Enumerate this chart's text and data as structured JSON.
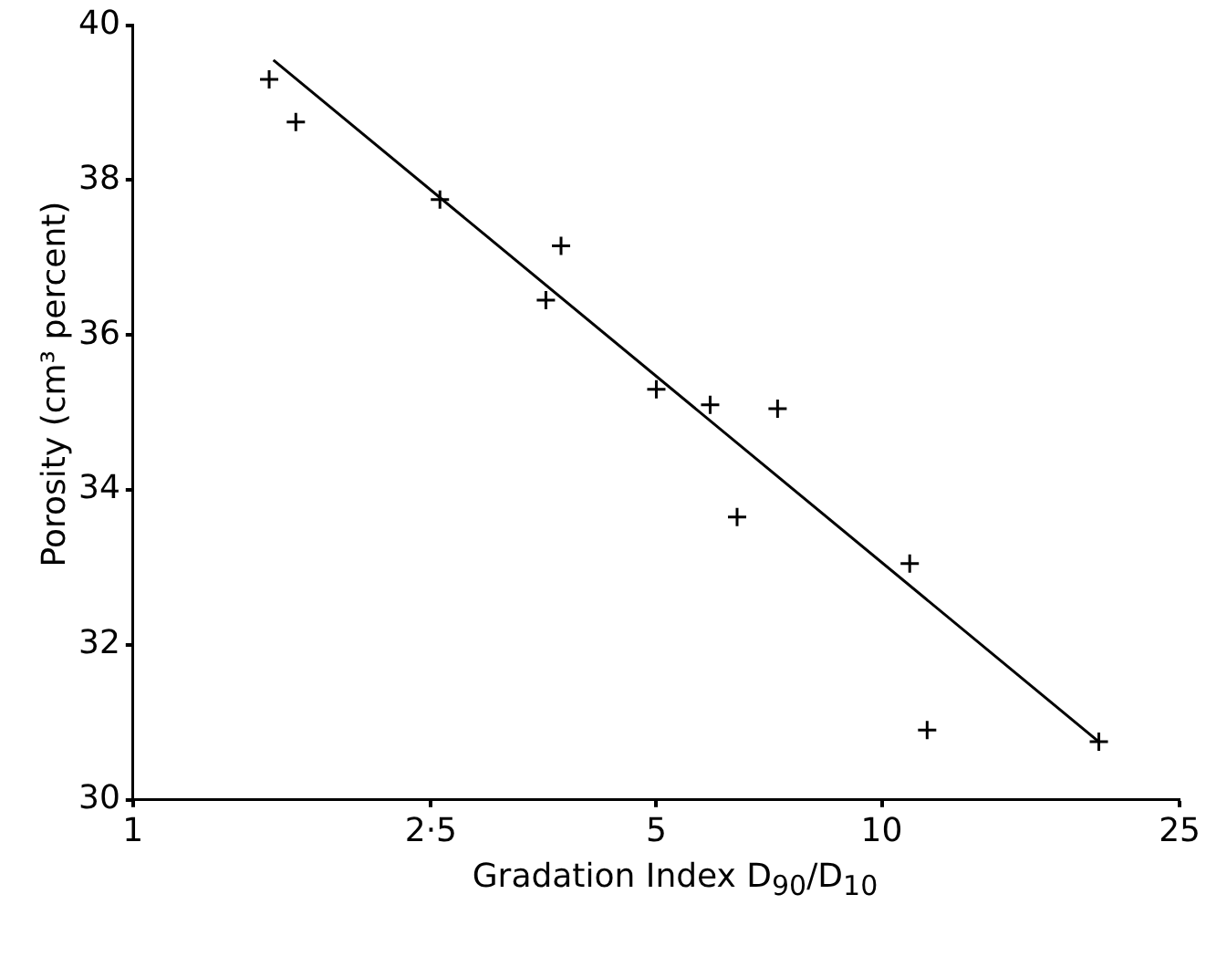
{
  "chart_data": {
    "type": "scatter",
    "xlabel": "Gradation Index D$_{90}$/D$_{10}$",
    "ylabel": "Porosity (cm³ percent)",
    "log": "x",
    "xlim": [
      1,
      25
    ],
    "xticks": [
      1,
      {
        "value": 2.5,
        "label": "2·5"
      },
      5,
      10,
      25
    ],
    "ylim": [
      30,
      40
    ],
    "yticks": [
      30,
      32,
      34,
      36,
      38,
      40
    ],
    "grid": false,
    "legend": false,
    "marker": "cross",
    "series": [
      {
        "type": "scatter",
        "color": "#000000",
        "x": [
          1.52,
          1.65,
          2.57,
          3.73,
          3.56,
          5.0,
          5.9,
          7.26,
          6.41,
          10.9,
          11.5,
          19.5
        ],
        "values": [
          39.3,
          38.75,
          37.75,
          37.15,
          36.45,
          35.3,
          35.1,
          35.05,
          33.65,
          33.05,
          30.9,
          30.75
        ]
      },
      {
        "type": "line",
        "marker": "none",
        "color": "#000000",
        "x": [
          1.54,
          19.5
        ],
        "values": [
          39.55,
          30.75
        ]
      }
    ]
  }
}
